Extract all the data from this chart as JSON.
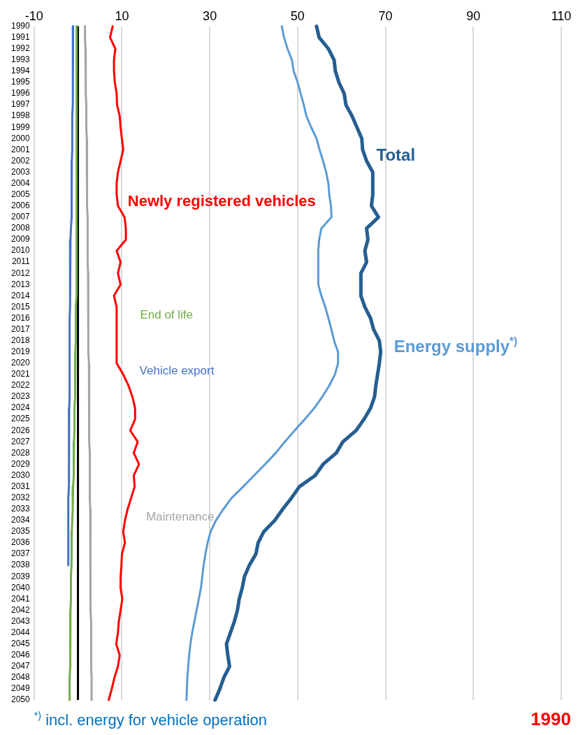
{
  "chart_data": {
    "type": "line",
    "orientation": "horizontal",
    "categories": [
      "1990",
      "1991",
      "1992",
      "1993",
      "1994",
      "1995",
      "1996",
      "1997",
      "1998",
      "1999",
      "2000",
      "2001",
      "2002",
      "2003",
      "2004",
      "2005",
      "2006",
      "2007",
      "2008",
      "2009",
      "2010",
      "2011",
      "2012",
      "2013",
      "2014",
      "2015",
      "2016",
      "2017",
      "2018",
      "2019",
      "2020",
      "2021",
      "2022",
      "2023",
      "2024",
      "2025",
      "2026",
      "2027",
      "2028",
      "2029",
      "2030",
      "2031",
      "2032",
      "2033",
      "2034",
      "2035",
      "2036",
      "2037",
      "2038",
      "2039",
      "2040",
      "2041",
      "2042",
      "2043",
      "2044",
      "2045",
      "2046",
      "2047",
      "2048",
      "2049",
      "2050"
    ],
    "series": [
      {
        "name": "Total",
        "color": "#255e91",
        "values": [
          54.3,
          54.9,
          57.0,
          58.3,
          58.6,
          59.4,
          60.6,
          61.0,
          62.4,
          63.5,
          64.6,
          64.8,
          65.7,
          67.1,
          67.1,
          67.1,
          66.8,
          68.4,
          65.7,
          66.0,
          65.3,
          65.7,
          64.4,
          64.4,
          64.4,
          65.3,
          66.6,
          67.3,
          68.6,
          68.9,
          68.6,
          68.2,
          67.8,
          67.5,
          66.6,
          65.1,
          63.3,
          60.3,
          58.8,
          55.8,
          54.0,
          50.4,
          48.6,
          46.6,
          44.8,
          42.3,
          41.0,
          40.5,
          39.0,
          37.9,
          37.4,
          36.7,
          36.3,
          35.6,
          34.7,
          33.8,
          34.1,
          34.5,
          33.2,
          32.3,
          31.2
        ]
      },
      {
        "name": "Energy supply$^{*)}$",
        "color": "#5b9bd5",
        "values": [
          46.4,
          46.9,
          47.7,
          48.7,
          49.1,
          50.0,
          50.7,
          51.4,
          52.0,
          53.1,
          54.3,
          55.0,
          55.8,
          56.5,
          57.0,
          57.2,
          57.6,
          57.7,
          55.4,
          54.9,
          54.7,
          54.7,
          54.7,
          54.7,
          55.4,
          56.3,
          57.0,
          57.7,
          58.3,
          59.2,
          59.2,
          58.5,
          57.2,
          55.6,
          53.8,
          51.6,
          49.3,
          47.1,
          45.0,
          42.6,
          40.1,
          37.6,
          35.0,
          33.1,
          31.4,
          30.2,
          29.5,
          29.0,
          28.6,
          28.3,
          28.0,
          27.5,
          27.0,
          26.5,
          26.0,
          25.6,
          25.3,
          25.1,
          24.9,
          24.8,
          24.7
        ]
      },
      {
        "name": "Newly registered vehicles",
        "color": "#ff0000",
        "values": [
          7.9,
          7.3,
          8.5,
          8.2,
          8.2,
          8.4,
          8.8,
          8.9,
          9.5,
          9.7,
          10.0,
          10.3,
          9.7,
          9.1,
          8.8,
          8.8,
          9.1,
          10.6,
          10.9,
          10.9,
          8.8,
          9.7,
          9.1,
          9.7,
          8.2,
          8.8,
          8.8,
          8.8,
          8.8,
          8.8,
          8.8,
          10.3,
          11.5,
          12.4,
          13.0,
          13.0,
          11.9,
          13.6,
          12.7,
          13.9,
          12.7,
          12.9,
          12.1,
          11.3,
          10.7,
          10.3,
          10.7,
          10.0,
          9.9,
          9.7,
          9.7,
          10.1,
          9.7,
          9.3,
          9.1,
          8.7,
          9.5,
          9.1,
          8.3,
          7.7,
          7.0
        ]
      },
      {
        "name": "Maintenance",
        "color": "#a5a5a5",
        "values": [
          1.6,
          1.6,
          1.7,
          1.7,
          1.8,
          1.8,
          1.8,
          1.9,
          1.9,
          1.9,
          2.0,
          2.0,
          2.0,
          2.1,
          2.1,
          2.1,
          2.1,
          2.2,
          2.2,
          2.2,
          2.2,
          2.2,
          2.3,
          2.3,
          2.3,
          2.3,
          2.4,
          2.4,
          2.4,
          2.4,
          2.5,
          2.5,
          2.5,
          2.5,
          2.6,
          2.6,
          2.6,
          2.6,
          2.7,
          2.7,
          2.7,
          2.7,
          2.7,
          2.8,
          2.8,
          2.8,
          2.8,
          2.8,
          2.9,
          2.9,
          2.9,
          2.9,
          2.9,
          3.0,
          3.0,
          3.0,
          3.0,
          3.0,
          3.1,
          3.1,
          3.1
        ]
      },
      {
        "name": "End of life",
        "color": "#70ad47",
        "values": [
          -0.3,
          -0.3,
          -0.3,
          -0.3,
          -0.3,
          -0.3,
          -0.3,
          -0.3,
          -0.3,
          -0.3,
          -0.3,
          -0.3,
          -0.3,
          -0.3,
          -0.3,
          -0.3,
          -0.3,
          -0.3,
          -0.3,
          -0.3,
          -0.3,
          -0.3,
          -0.4,
          -0.4,
          -0.4,
          -0.5,
          -0.5,
          -0.5,
          -0.5,
          -0.6,
          -0.6,
          -0.6,
          -0.7,
          -0.7,
          -0.8,
          -0.8,
          -0.8,
          -0.9,
          -0.9,
          -1.0,
          -1.0,
          -1.1,
          -1.2,
          -1.2,
          -1.3,
          -1.4,
          -1.4,
          -1.5,
          -1.5,
          -1.6,
          -1.6,
          -1.6,
          -1.7,
          -1.7,
          -1.7,
          -1.8,
          -1.8,
          -1.8,
          -1.9,
          -1.9,
          -1.9
        ]
      },
      {
        "name": "Vehicle export",
        "color": "#4472c4",
        "values": [
          -1.1,
          -1.1,
          -1.1,
          -1.2,
          -1.2,
          -1.2,
          -1.2,
          -1.2,
          -1.3,
          -1.3,
          -1.3,
          -1.3,
          -1.4,
          -1.4,
          -1.4,
          -1.4,
          -1.5,
          -1.5,
          -1.6,
          -1.7,
          -1.8,
          -1.8,
          -1.8,
          -1.8,
          -1.8,
          -1.8,
          -1.9,
          -1.9,
          -1.9,
          -1.9,
          -1.9,
          -1.9,
          -1.9,
          -1.9,
          -2.0,
          -2.0,
          -2.0,
          -2.0,
          -2.1,
          -2.1,
          -2.1,
          -2.1,
          -2.2,
          -2.2,
          -2.2,
          -2.2,
          -2.2,
          -2.2,
          -2.2,
          null,
          null,
          null,
          null,
          null,
          null,
          null,
          null,
          null,
          null,
          null,
          null
        ]
      }
    ],
    "xlim": [
      -10,
      110
    ],
    "xticks": [
      -10,
      10,
      30,
      50,
      70,
      90,
      110
    ],
    "ref_lines": [
      {
        "axis": "x",
        "value": 0,
        "color": "#000000"
      }
    ],
    "grid": "x",
    "legend": false,
    "marker": "none",
    "line_style": "solid",
    "annotations": [
      "$^{*)}$ incl. energy for vehicle operation",
      "1990"
    ]
  }
}
